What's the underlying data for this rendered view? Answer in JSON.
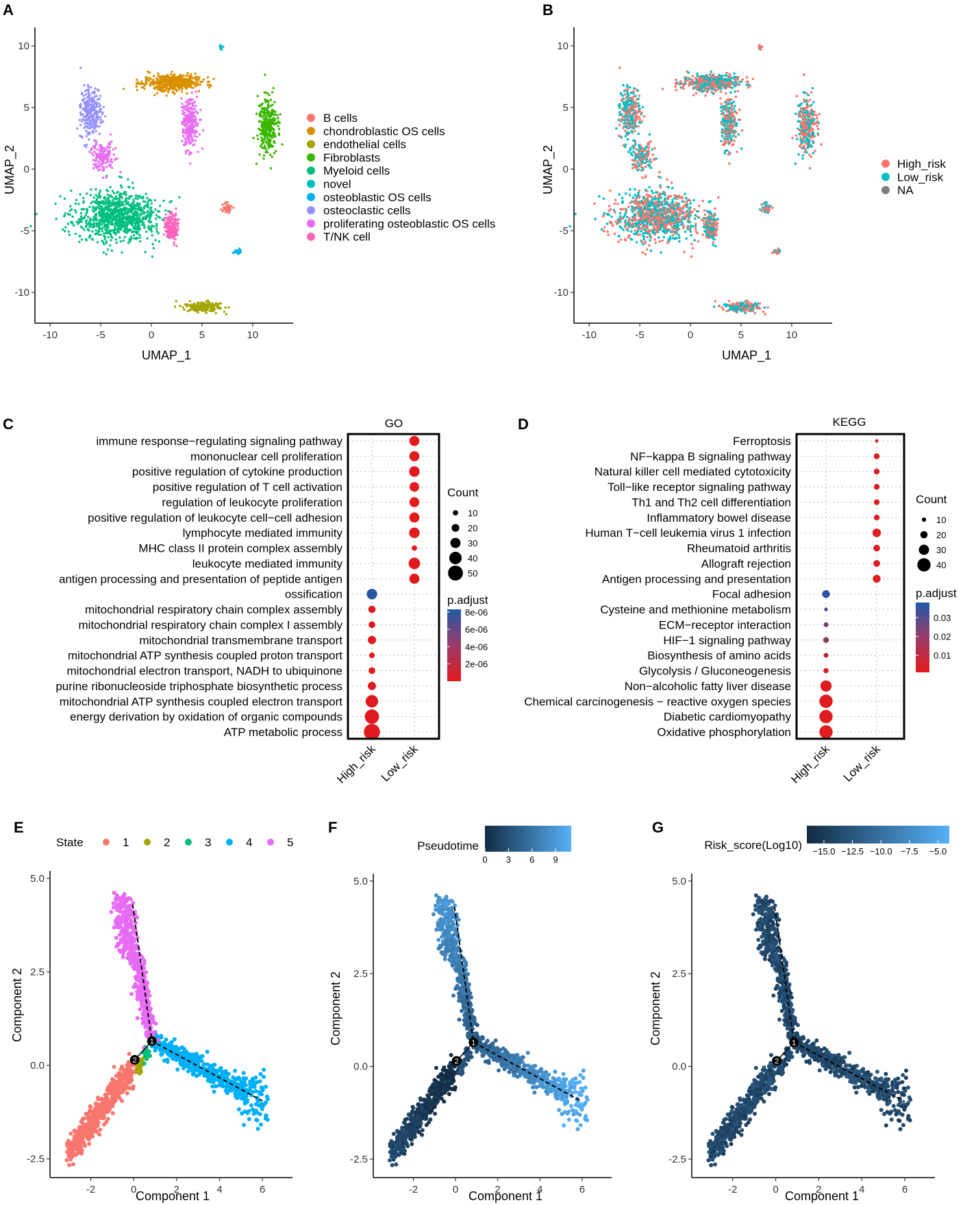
{
  "panels": {
    "A": {
      "label": "A"
    },
    "B": {
      "label": "B"
    },
    "C": {
      "label": "C"
    },
    "D": {
      "label": "D"
    },
    "E": {
      "label": "E"
    },
    "F": {
      "label": "F"
    },
    "G": {
      "label": "G"
    }
  },
  "chart_data": [
    {
      "id": "A",
      "type": "scatter",
      "title": "",
      "xlabel": "UMAP_1",
      "ylabel": "UMAP_2",
      "xlim": [
        -11.5,
        14
      ],
      "ylim": [
        -12.5,
        11.5
      ],
      "xticks": [
        -10,
        -5,
        0,
        5,
        10
      ],
      "yticks": [
        -10,
        -5,
        0,
        5,
        10
      ],
      "legend_position": "right",
      "legend": [
        {
          "name": "B cells",
          "color": "#F8766D"
        },
        {
          "name": "chondroblastic OS cells",
          "color": "#D89000"
        },
        {
          "name": "endothelial cells",
          "color": "#A3A500"
        },
        {
          "name": "Fibroblasts",
          "color": "#39B600"
        },
        {
          "name": "Myeloid cells",
          "color": "#00BF7D"
        },
        {
          "name": "novel",
          "color": "#00BFC4"
        },
        {
          "name": "osteoblastic OS cells",
          "color": "#00B0F6"
        },
        {
          "name": "osteoclastic cells",
          "color": "#9590FF"
        },
        {
          "name": "proliferating osteoblastic OS cells",
          "color": "#E76BF3"
        },
        {
          "name": "T/NK cell",
          "color": "#FF62BC"
        }
      ],
      "clusters": [
        {
          "name": "Myeloid cells",
          "center": [
            -3.5,
            -3.8
          ],
          "spread": [
            3.8,
            1.8
          ],
          "n": 950
        },
        {
          "name": "chondroblastic OS cells",
          "center": [
            2.0,
            7.0
          ],
          "spread": [
            2.6,
            0.6
          ],
          "n": 450
        },
        {
          "name": "proliferating osteoblastic OS cells",
          "center": [
            3.8,
            3.8
          ],
          "spread": [
            0.8,
            1.8
          ],
          "n": 240
        },
        {
          "name": "osteoclastic cells",
          "center": [
            -6.0,
            4.5
          ],
          "spread": [
            0.9,
            1.9
          ],
          "n": 250
        },
        {
          "name": "proliferating osteoblastic OS cells",
          "center": [
            -4.8,
            1.0
          ],
          "spread": [
            1.0,
            1.0
          ],
          "n": 150
        },
        {
          "name": "Fibroblasts",
          "center": [
            11.5,
            3.5
          ],
          "spread": [
            0.9,
            2.0
          ],
          "n": 300
        },
        {
          "name": "T/NK cell",
          "center": [
            2.0,
            -4.7
          ],
          "spread": [
            0.6,
            1.0
          ],
          "n": 160
        },
        {
          "name": "endothelial cells",
          "center": [
            5.0,
            -11.2
          ],
          "spread": [
            1.7,
            0.35
          ],
          "n": 190
        },
        {
          "name": "B cells",
          "center": [
            7.5,
            -3.2
          ],
          "spread": [
            0.4,
            0.35
          ],
          "n": 40
        },
        {
          "name": "osteoblastic OS cells",
          "center": [
            8.5,
            -6.7
          ],
          "spread": [
            0.3,
            0.2
          ],
          "n": 20
        },
        {
          "name": "novel",
          "center": [
            6.9,
            9.9
          ],
          "spread": [
            0.15,
            0.15
          ],
          "n": 12
        }
      ]
    },
    {
      "id": "B",
      "type": "scatter",
      "xlabel": "UMAP_1",
      "ylabel": "UMAP_2",
      "xlim": [
        -11.5,
        14
      ],
      "ylim": [
        -12.5,
        11.5
      ],
      "xticks": [
        -10,
        -5,
        0,
        5,
        10
      ],
      "yticks": [
        -10,
        -5,
        0,
        5,
        10
      ],
      "legend_position": "right",
      "legend": [
        {
          "name": "High_risk",
          "color": "#F8766D"
        },
        {
          "name": "Low_risk",
          "color": "#00BFC4"
        },
        {
          "name": "NA",
          "color": "#7F7F7F"
        }
      ]
    },
    {
      "id": "C",
      "type": "dot",
      "title": "GO",
      "categories_x": [
        "High_risk",
        "Low_risk"
      ],
      "terms": [
        "immune response−regulating signaling pathway",
        "mononuclear cell proliferation",
        "positive regulation of cytokine production",
        "positive regulation of T cell activation",
        "regulation of leukocyte proliferation",
        "positive regulation of leukocyte cell−cell adhesion",
        "lymphocyte mediated immunity",
        "MHC class II protein complex assembly",
        "leukocyte mediated immunity",
        "antigen processing and presentation of peptide antigen",
        "ossification",
        "mitochondrial respiratory chain complex assembly",
        "mitochondrial respiratory chain complex I assembly",
        "mitochondrial transmembrane transport",
        "mitochondrial ATP synthesis coupled proton transport",
        "mitochondrial electron transport, NADH to ubiquinone",
        "purine ribonucleoside triphosphate biosynthetic process",
        "mitochondrial ATP synthesis coupled electron transport",
        "energy derivation by oxidation of organic compounds",
        "ATP metabolic process"
      ],
      "points": [
        {
          "term": 0,
          "group": "Low_risk",
          "count": 30,
          "padj": 1e-07
        },
        {
          "term": 1,
          "group": "Low_risk",
          "count": 30,
          "padj": 1e-07
        },
        {
          "term": 2,
          "group": "Low_risk",
          "count": 32,
          "padj": 1e-07
        },
        {
          "term": 3,
          "group": "Low_risk",
          "count": 28,
          "padj": 1e-07
        },
        {
          "term": 4,
          "group": "Low_risk",
          "count": 29,
          "padj": 1e-07
        },
        {
          "term": 5,
          "group": "Low_risk",
          "count": 30,
          "padj": 1e-07
        },
        {
          "term": 6,
          "group": "Low_risk",
          "count": 32,
          "padj": 1e-07
        },
        {
          "term": 7,
          "group": "Low_risk",
          "count": 10,
          "padj": 1e-07
        },
        {
          "term": 8,
          "group": "Low_risk",
          "count": 36,
          "padj": 1e-07
        },
        {
          "term": 9,
          "group": "Low_risk",
          "count": 30,
          "padj": 1e-07
        },
        {
          "term": 10,
          "group": "High_risk",
          "count": 32,
          "padj": 8e-06
        },
        {
          "term": 11,
          "group": "High_risk",
          "count": 18,
          "padj": 2e-07
        },
        {
          "term": 12,
          "group": "High_risk",
          "count": 16,
          "padj": 2e-07
        },
        {
          "term": 13,
          "group": "High_risk",
          "count": 22,
          "padj": 2e-07
        },
        {
          "term": 14,
          "group": "High_risk",
          "count": 12,
          "padj": 2e-07
        },
        {
          "term": 15,
          "group": "High_risk",
          "count": 16,
          "padj": 2e-07
        },
        {
          "term": 16,
          "group": "High_risk",
          "count": 22,
          "padj": 2e-07
        },
        {
          "term": 17,
          "group": "High_risk",
          "count": 40,
          "padj": 2e-07
        },
        {
          "term": 18,
          "group": "High_risk",
          "count": 48,
          "padj": 2e-07
        },
        {
          "term": 19,
          "group": "High_risk",
          "count": 55,
          "padj": 2e-07
        }
      ],
      "size_legend": {
        "title": "Count",
        "values": [
          10,
          20,
          30,
          40,
          50
        ]
      },
      "color_legend": {
        "title": "p.adjust",
        "labels": [
          "8e-06",
          "6e-06",
          "4e-06",
          "2e-06"
        ],
        "range": [
          0,
          8.3e-06
        ],
        "low_color": "#E41A1C",
        "high_color": "#2158A8"
      }
    },
    {
      "id": "D",
      "type": "dot",
      "title": "KEGG",
      "categories_x": [
        "High_risk",
        "Low_risk"
      ],
      "terms": [
        "Ferroptosis",
        "NF−kappa B signaling pathway",
        "Natural killer cell mediated cytotoxicity",
        "Toll−like receptor signaling pathway",
        "Th1 and Th2 cell differentiation",
        "Inflammatory bowel disease",
        "Human T−cell leukemia virus 1 infection",
        "Rheumatoid arthritis",
        "Allograft rejection",
        "Antigen processing and presentation",
        "Focal adhesion",
        "Cysteine and methionine metabolism",
        "ECM−receptor interaction",
        "HIF−1 signaling pathway",
        "Biosynthesis of amino acids",
        "Glycolysis / Gluconeogenesis",
        "Non−alcoholic fatty liver disease",
        "Chemical carcinogenesis − reactive oxygen species",
        "Diabetic cardiomyopathy",
        "Oxidative phosphorylation"
      ],
      "points": [
        {
          "term": 0,
          "group": "Low_risk",
          "count": 7,
          "padj": 0.002
        },
        {
          "term": 1,
          "group": "Low_risk",
          "count": 15,
          "padj": 0.002
        },
        {
          "term": 2,
          "group": "Low_risk",
          "count": 15,
          "padj": 0.002
        },
        {
          "term": 3,
          "group": "Low_risk",
          "count": 15,
          "padj": 0.002
        },
        {
          "term": 4,
          "group": "Low_risk",
          "count": 15,
          "padj": 0.002
        },
        {
          "term": 5,
          "group": "Low_risk",
          "count": 15,
          "padj": 0.002
        },
        {
          "term": 6,
          "group": "Low_risk",
          "count": 24,
          "padj": 0.002
        },
        {
          "term": 7,
          "group": "Low_risk",
          "count": 18,
          "padj": 0.002
        },
        {
          "term": 8,
          "group": "Low_risk",
          "count": 18,
          "padj": 0.002
        },
        {
          "term": 9,
          "group": "Low_risk",
          "count": 22,
          "padj": 0.002
        },
        {
          "term": 10,
          "group": "High_risk",
          "count": 22,
          "padj": 0.036
        },
        {
          "term": 11,
          "group": "High_risk",
          "count": 8,
          "padj": 0.03
        },
        {
          "term": 12,
          "group": "High_risk",
          "count": 12,
          "padj": 0.022
        },
        {
          "term": 13,
          "group": "High_risk",
          "count": 15,
          "padj": 0.018
        },
        {
          "term": 14,
          "group": "High_risk",
          "count": 12,
          "padj": 0.01
        },
        {
          "term": 15,
          "group": "High_risk",
          "count": 13,
          "padj": 0.004
        },
        {
          "term": 16,
          "group": "High_risk",
          "count": 33,
          "padj": 0.002
        },
        {
          "term": 17,
          "group": "High_risk",
          "count": 40,
          "padj": 0.002
        },
        {
          "term": 18,
          "group": "High_risk",
          "count": 40,
          "padj": 0.002
        },
        {
          "term": 19,
          "group": "High_risk",
          "count": 40,
          "padj": 0.002
        }
      ],
      "size_legend": {
        "title": "Count",
        "values": [
          10,
          20,
          30,
          40
        ]
      },
      "color_legend": {
        "title": "p.adjust",
        "labels": [
          "0.03",
          "0.02",
          "0.01"
        ],
        "range": [
          0.001,
          0.038
        ],
        "low_color": "#E41A1C",
        "high_color": "#2158A8"
      }
    },
    {
      "id": "E",
      "type": "scatter",
      "xlabel": "Component 1",
      "ylabel": "Component 2",
      "xlim": [
        -3.9,
        7.4
      ],
      "ylim": [
        -3.0,
        5.2
      ],
      "xticks": [
        -2,
        0,
        2,
        4,
        6
      ],
      "yticks": [
        -2.5,
        0.0,
        2.5,
        5.0
      ],
      "ytick_labels": [
        "-2.5",
        "0.0",
        "2.5",
        "5.0"
      ],
      "legend_title": "State",
      "legend": [
        {
          "name": "1",
          "color": "#F8766D"
        },
        {
          "name": "2",
          "color": "#A3A500"
        },
        {
          "name": "3",
          "color": "#00BF7D"
        },
        {
          "name": "4",
          "color": "#00B0F6"
        },
        {
          "name": "5",
          "color": "#E76BF3"
        }
      ],
      "branch_points": [
        {
          "label": "1",
          "x": 0.85,
          "y": 0.65
        },
        {
          "label": "2",
          "x": 0.05,
          "y": 0.15
        }
      ]
    },
    {
      "id": "F",
      "type": "scatter",
      "xlabel": "Component 1",
      "ylabel": "Component 2",
      "xlim": [
        -3.9,
        7.4
      ],
      "ylim": [
        -3.0,
        5.2
      ],
      "xticks": [
        -2,
        0,
        2,
        4,
        6
      ],
      "yticks": [
        -2.5,
        0.0,
        2.5,
        5.0
      ],
      "ytick_labels": [
        "-2.5",
        "0.0",
        "2.5",
        "5.0"
      ],
      "colorbar_title": "Pseudotime",
      "colorbar_ticks": [
        "0",
        "3",
        "6",
        "9"
      ],
      "colorbar_range": [
        0,
        11
      ],
      "low_color": "#132B43",
      "high_color": "#56B1F7",
      "branch_points": [
        {
          "label": "1",
          "x": 0.85,
          "y": 0.65
        },
        {
          "label": "2",
          "x": 0.05,
          "y": 0.15
        }
      ]
    },
    {
      "id": "G",
      "type": "scatter",
      "xlabel": "Component 1",
      "ylabel": "Component 2",
      "xlim": [
        -3.9,
        7.4
      ],
      "ylim": [
        -3.0,
        5.2
      ],
      "xticks": [
        -2,
        0,
        2,
        4,
        6
      ],
      "yticks": [
        -2.5,
        0.0,
        2.5,
        5.0
      ],
      "ytick_labels": [
        "-2.5",
        "0.0",
        "2.5",
        "5.0"
      ],
      "colorbar_title": "Risk_score(Log10)",
      "colorbar_ticks": [
        "−15.0",
        "−12.5",
        "−10.0",
        "−7.5",
        "−5.0"
      ],
      "colorbar_range": [
        -16.5,
        -4.0
      ],
      "low_color": "#132B43",
      "high_color": "#56B1F7",
      "branch_points": [
        {
          "label": "1",
          "x": 0.85,
          "y": 0.65
        },
        {
          "label": "2",
          "x": 0.05,
          "y": 0.15
        }
      ]
    }
  ]
}
